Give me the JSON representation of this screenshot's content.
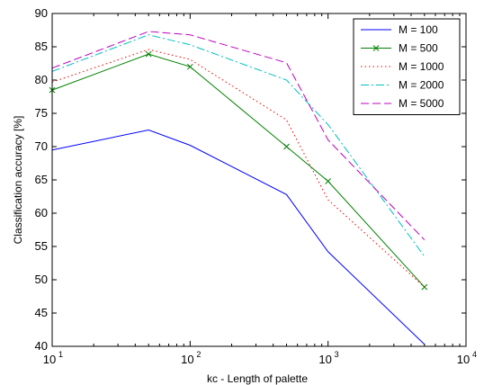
{
  "chart_data": {
    "type": "line",
    "xscale": "log",
    "xlabel": "kc - Length of palette",
    "ylabel": "Classification accuracy [%]",
    "xlim": [
      10,
      10000
    ],
    "ylim": [
      40,
      90
    ],
    "grid": false,
    "legend_position": "top-right",
    "yticks": [
      40,
      45,
      50,
      55,
      60,
      65,
      70,
      75,
      80,
      85,
      90
    ],
    "xticks": [
      {
        "base": "10",
        "exp": "1"
      },
      {
        "base": "10",
        "exp": "2"
      },
      {
        "base": "10",
        "exp": "3"
      },
      {
        "base": "10",
        "exp": "4"
      }
    ],
    "x": [
      10,
      50,
      100,
      500,
      1000,
      5000
    ],
    "series": [
      {
        "name": "M = 100",
        "color": "#0000ff",
        "style": "solid",
        "marker": "none",
        "values": [
          69.5,
          72.5,
          70.2,
          62.8,
          54.2,
          40.3
        ]
      },
      {
        "name": "M = 500",
        "color": "#008000",
        "style": "solid",
        "marker": "x",
        "values": [
          78.5,
          83.9,
          82.0,
          70.0,
          64.8,
          48.9
        ]
      },
      {
        "name": "M = 1000",
        "color": "#ff0000",
        "style": "dotted",
        "marker": "none",
        "values": [
          79.7,
          84.6,
          83.1,
          74.0,
          62.0,
          48.9
        ]
      },
      {
        "name": "M = 2000",
        "color": "#00bfbf",
        "style": "dashdot",
        "marker": "none",
        "values": [
          81.3,
          86.8,
          85.3,
          80.0,
          73.3,
          53.5
        ]
      },
      {
        "name": "M = 5000",
        "color": "#bf00bf",
        "style": "dashed",
        "marker": "none",
        "values": [
          81.8,
          87.3,
          86.8,
          82.6,
          71.0,
          56.0
        ]
      }
    ]
  }
}
